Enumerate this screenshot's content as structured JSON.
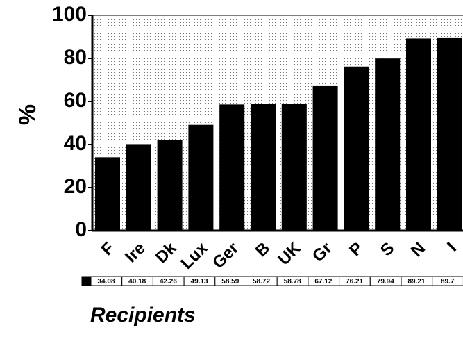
{
  "chart_data": {
    "type": "bar",
    "y_label": "%",
    "x_label": "Recipients",
    "categories": [
      "F",
      "Ire",
      "Dk",
      "Lux",
      "Ger",
      "B",
      "UK",
      "Gr",
      "P",
      "S",
      "N",
      "I"
    ],
    "values": [
      34.08,
      40.18,
      42.26,
      49.13,
      58.59,
      58.72,
      58.78,
      67.12,
      76.21,
      79.94,
      89.21,
      89.7
    ],
    "color": "#000000",
    "ylim": [
      0,
      100
    ],
    "yticks": [
      0,
      20,
      40,
      60,
      80,
      100
    ],
    "data_table": true
  }
}
